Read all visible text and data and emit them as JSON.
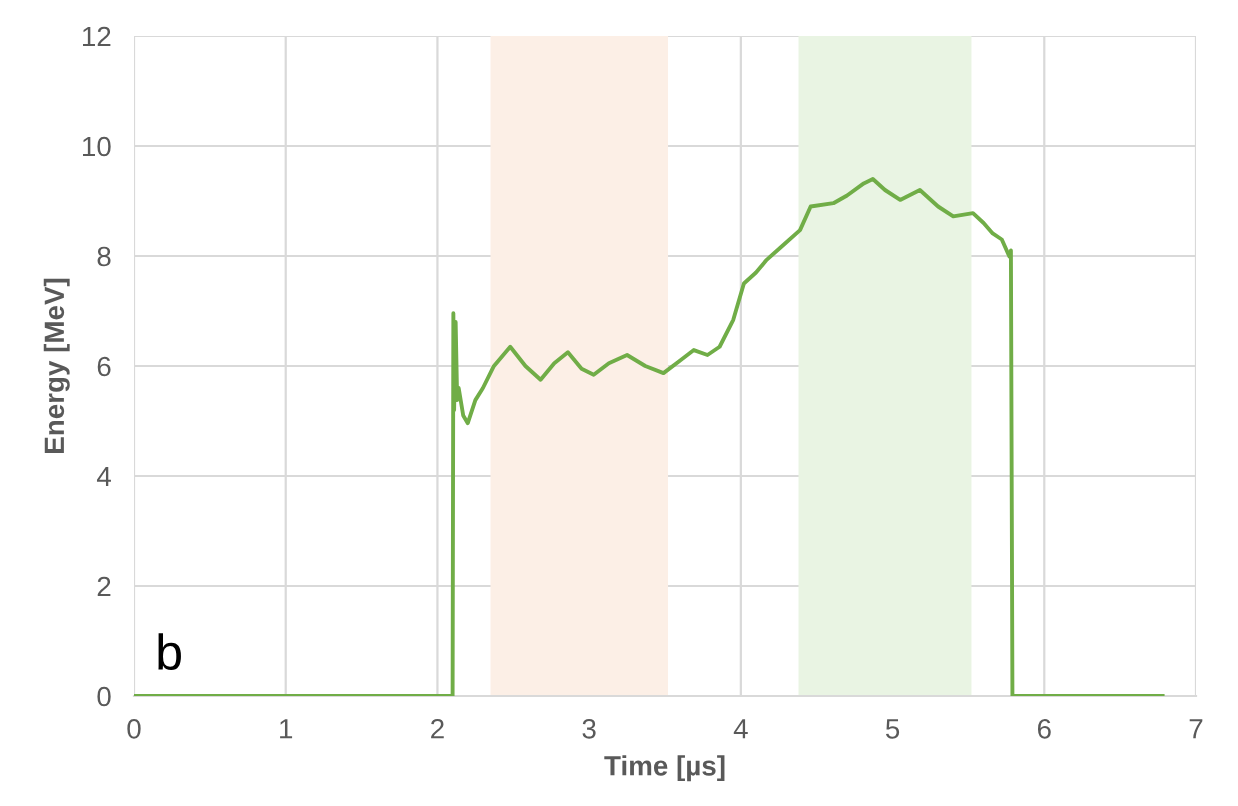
{
  "chart_data": {
    "type": "line",
    "xlabel": "Time [µs]",
    "ylabel": "Energy [MeV]",
    "annotations": [
      "b"
    ],
    "series": [
      {
        "color": "#70ad47",
        "x": [
          0,
          2.09,
          2.1,
          2.105,
          2.11,
          2.12,
          2.13,
          2.14,
          2.17,
          2.2,
          2.25,
          2.3,
          2.37,
          2.48,
          2.58,
          2.68,
          2.77,
          2.86,
          2.95,
          3.03,
          3.13,
          3.25,
          3.37,
          3.49,
          3.6,
          3.69,
          3.78,
          3.86,
          3.95,
          4.02,
          4.1,
          4.17,
          4.28,
          4.39,
          4.46,
          4.61,
          4.7,
          4.81,
          4.87,
          4.95,
          5.05,
          5.18,
          5.3,
          5.4,
          5.53,
          5.6,
          5.66,
          5.72,
          5.77,
          5.78,
          5.79,
          6.78
        ],
        "values": [
          0,
          0,
          0,
          6.96,
          5.2,
          6.8,
          5.38,
          5.6,
          5.1,
          4.96,
          5.38,
          5.6,
          5.99,
          6.35,
          6.0,
          5.75,
          6.05,
          6.25,
          5.95,
          5.84,
          6.05,
          6.2,
          6.0,
          5.87,
          6.1,
          6.29,
          6.2,
          6.35,
          6.84,
          7.5,
          7.7,
          7.93,
          8.2,
          8.47,
          8.9,
          8.96,
          9.1,
          9.32,
          9.4,
          9.2,
          9.02,
          9.2,
          8.9,
          8.72,
          8.78,
          8.6,
          8.41,
          8.3,
          7.99,
          8.1,
          0,
          0
        ]
      }
    ],
    "xlim": [
      0,
      7
    ],
    "xticks": [
      0,
      1,
      2,
      3,
      4,
      5,
      6,
      7
    ],
    "ylim": [
      0,
      12
    ],
    "yticks": [
      0,
      2,
      4,
      6,
      8,
      10,
      12
    ],
    "bands": [
      {
        "axis": "x",
        "from": 2.35,
        "to": 3.52,
        "color": "#fcefe6",
        "label": null
      },
      {
        "axis": "x",
        "from": 4.38,
        "to": 5.52,
        "color": "#e9f4e3",
        "label": null
      }
    ],
    "grid": true,
    "legend": false,
    "marker": "none",
    "line_style": "solid"
  }
}
